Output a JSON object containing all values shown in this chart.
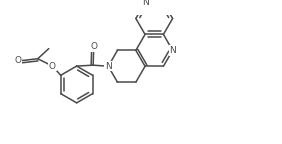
{
  "figsize": [
    2.82,
    1.44
  ],
  "dpi": 100,
  "lc": "#4a4a4a",
  "lw": 1.1,
  "fs": 6.5,
  "xlim": [
    0,
    14
  ],
  "ylim": [
    0,
    7
  ],
  "bl": 1.0
}
